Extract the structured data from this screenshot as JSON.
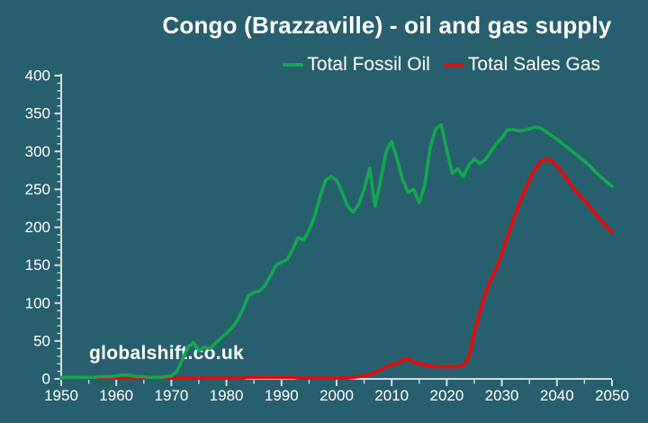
{
  "page": {
    "title": "Congo (Brazzaville) - oil and gas supply",
    "watermark": "globalshift.co.uk"
  },
  "colors": {
    "background": "#285f6e",
    "axis": "#d3dee2",
    "text": "#ffffff",
    "oil_line": "#14a751",
    "gas_line": "#ec0707"
  },
  "chart_data": {
    "type": "line",
    "title": "Congo (Brazzaville) - oil and gas supply",
    "xlabel": "",
    "ylabel": "",
    "xlim": [
      1950,
      2050
    ],
    "ylim": [
      0,
      400
    ],
    "x_major_tick_step": 10,
    "x_minor_tick_step": 5,
    "y_major_tick_step": 50,
    "y_minor_tick_step": 10,
    "grid": false,
    "legend_position": "top-right",
    "x": [
      1950,
      1951,
      1952,
      1953,
      1954,
      1955,
      1956,
      1957,
      1958,
      1959,
      1960,
      1961,
      1962,
      1963,
      1964,
      1965,
      1966,
      1967,
      1968,
      1969,
      1970,
      1971,
      1972,
      1973,
      1974,
      1975,
      1976,
      1977,
      1978,
      1979,
      1980,
      1981,
      1982,
      1983,
      1984,
      1985,
      1986,
      1987,
      1988,
      1989,
      1990,
      1991,
      1992,
      1993,
      1994,
      1995,
      1996,
      1997,
      1998,
      1999,
      2000,
      2001,
      2002,
      2003,
      2004,
      2005,
      2006,
      2007,
      2008,
      2009,
      2010,
      2011,
      2012,
      2013,
      2014,
      2015,
      2016,
      2017,
      2018,
      2019,
      2020,
      2021,
      2022,
      2023,
      2024,
      2025,
      2026,
      2027,
      2028,
      2029,
      2030,
      2031,
      2032,
      2033,
      2034,
      2035,
      2036,
      2037,
      2038,
      2039,
      2040,
      2041,
      2042,
      2043,
      2044,
      2045,
      2046,
      2047,
      2048,
      2049,
      2050
    ],
    "series": [
      {
        "name": "Total Sales Gas",
        "color_key": "gas_line",
        "values": [
          1,
          1,
          1,
          1,
          1,
          1,
          1,
          1,
          1,
          1,
          1,
          1,
          1,
          1,
          1,
          1,
          1,
          1,
          1,
          1,
          1,
          1,
          1,
          1,
          1,
          1,
          1,
          1,
          1,
          1,
          1,
          1,
          1,
          1,
          2,
          2,
          2,
          2,
          2,
          2,
          2,
          2,
          2,
          1,
          1,
          1,
          1,
          1,
          1,
          1,
          1,
          1,
          1,
          2,
          3,
          4,
          6,
          9,
          12,
          16,
          19,
          20,
          25,
          26,
          22,
          20,
          18,
          17,
          16,
          16,
          16,
          16,
          16,
          18,
          28,
          60,
          88,
          112,
          130,
          146,
          165,
          186,
          208,
          228,
          246,
          262,
          276,
          286,
          290,
          288,
          281,
          272,
          262,
          251,
          243,
          235,
          227,
          218,
          209,
          201,
          193
        ]
      },
      {
        "name": "Total Fossil Oil",
        "color_key": "oil_line",
        "values": [
          2,
          2,
          2,
          2,
          2,
          2,
          2,
          3,
          3,
          3,
          4,
          5,
          5,
          4,
          3,
          3,
          2,
          2,
          2,
          3,
          4,
          10,
          25,
          42,
          48,
          37,
          42,
          40,
          47,
          54,
          60,
          67,
          77,
          92,
          110,
          114,
          116,
          123,
          136,
          150,
          154,
          157,
          170,
          186,
          183,
          196,
          214,
          240,
          262,
          267,
          262,
          246,
          228,
          220,
          230,
          250,
          278,
          228,
          262,
          300,
          313,
          290,
          262,
          246,
          250,
          232,
          255,
          305,
          330,
          335,
          302,
          271,
          277,
          267,
          282,
          290,
          284,
          289,
          300,
          310,
          318,
          328,
          329,
          327,
          328,
          330,
          332,
          331,
          326,
          321,
          316,
          310,
          305,
          299,
          293,
          287,
          281,
          273,
          266,
          260,
          254
        ]
      }
    ],
    "legend_order": [
      "Total Fossil Oil",
      "Total Sales Gas"
    ]
  }
}
